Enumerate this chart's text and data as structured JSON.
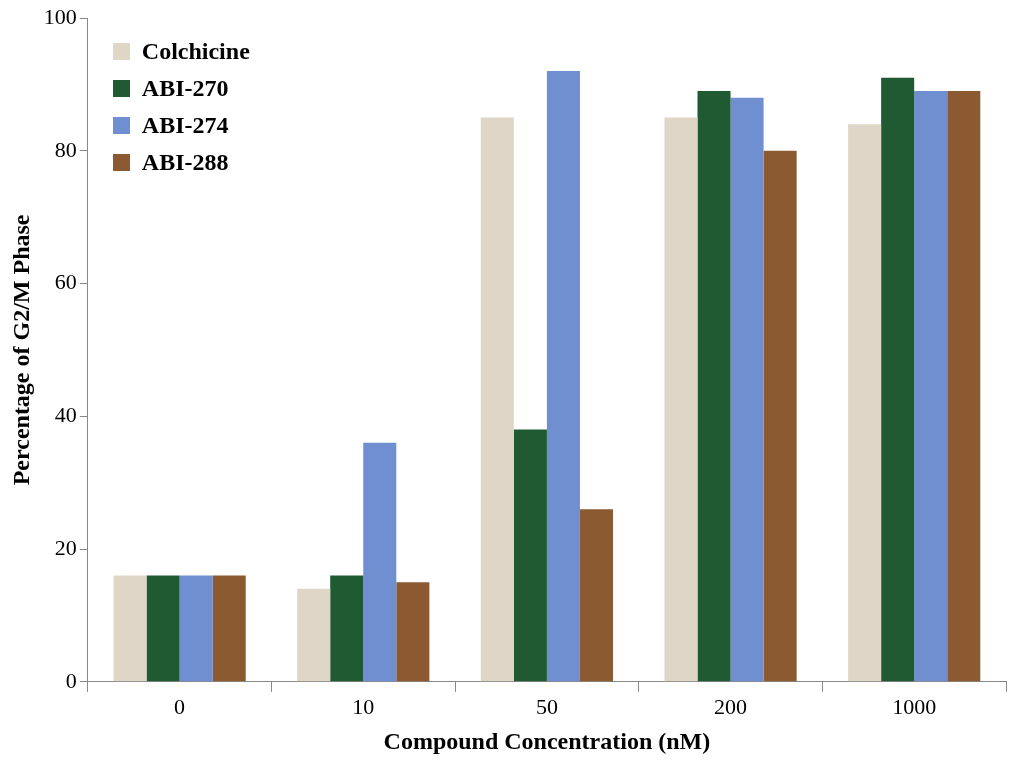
{
  "chart_data": {
    "type": "bar",
    "xlabel": "Compound Concentration (nM)",
    "ylabel": "Percentage of G2/M Phase",
    "categories": [
      "0",
      "10",
      "50",
      "200",
      "1000"
    ],
    "series": [
      {
        "name": "Colchicine",
        "color": "#e0d6c8",
        "values": [
          16,
          14,
          85,
          85,
          84
        ]
      },
      {
        "name": "ABI-270",
        "color": "#1f5a32",
        "values": [
          16,
          16,
          38,
          89,
          91
        ]
      },
      {
        "name": "ABI-274",
        "color": "#6f8fd0",
        "values": [
          16,
          36,
          92,
          88,
          89
        ]
      },
      {
        "name": "ABI-288",
        "color": "#8b5a30",
        "values": [
          16,
          15,
          26,
          80,
          89
        ]
      }
    ],
    "ylim": [
      0,
      100
    ],
    "yticks": [
      0,
      20,
      40,
      60,
      80,
      100
    ],
    "grid": false,
    "legend": "top left"
  }
}
